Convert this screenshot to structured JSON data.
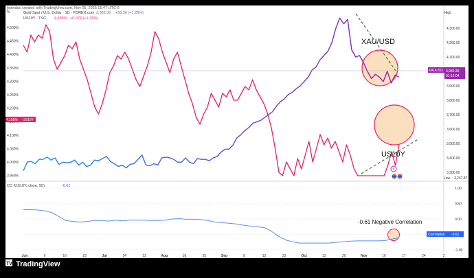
{
  "header": {
    "attribution": "jepindac created with TradingView.com, Nov 05, 2025 15:47 UTC-5",
    "legend_line1_name": "Gold Spot / U.S. Dollar · 1D · FOREX.com",
    "legend_line1_value": "3,982.30",
    "legend_line1_change": "+50.26 (+1.28%)",
    "legend_line2_name": "US10Y · TVC",
    "legend_line2_value": "4.155%",
    "legend_line2_change": "+0.072 (+1.76%)",
    "scale_mode": "High",
    "percent_corner": "%"
  },
  "badges": {
    "xau_price": "3,982.30",
    "xau_symbol": "XAUUSD",
    "xau_countdown": "01:12:04",
    "us10y_value": "4.155%",
    "us10y_symbol": "US10Y",
    "low_label": "Low",
    "low_value": "3,247.87",
    "corr_label": "Correlation",
    "corr_value": "-0.61"
  },
  "indicator": {
    "label": "CC (US10Y, close, 50)",
    "value": "-0.61"
  },
  "annotations": {
    "xau": "XAU/USD",
    "us10y": "US10Y",
    "corr": "-0.61 Negative Correlation"
  },
  "footer": {
    "brand": "TradingView"
  },
  "colors": {
    "xau_line_start": "#2196f3",
    "xau_line_end": "#9c27b0",
    "us10y_line": "#e91e63",
    "corr_line": "#5b8def",
    "highlight_fill": "#fbe0c0",
    "circle_stroke": "#e91e63",
    "trend_dash": "#2e7d32"
  },
  "chart_data": [
    {
      "type": "line",
      "xlabel": "",
      "x_ticks": [
        "Jun",
        "9",
        "16",
        "23",
        "Jul",
        "14",
        "22",
        "Aug",
        "18",
        "25",
        "Sep",
        "8",
        "15",
        "22",
        "Oct",
        "13",
        "20",
        "Nov",
        "10",
        "17",
        "24",
        "2"
      ],
      "y_left_ticks": [
        "4.500%",
        "4.450%",
        "4.400%",
        "4.350%",
        "4.300%",
        "4.250%",
        "4.200%",
        "4.150%",
        "4.100%",
        "4.050%",
        "4.000%",
        "3.950%"
      ],
      "y_right_ticks": [
        "4,300.00",
        "4,200.00",
        "4,100.00",
        "4,000.00",
        "3,900.00",
        "3,800.00",
        "3,700.00",
        "3,600.00",
        "3,500.00",
        "3,400.00",
        "3,300.00"
      ],
      "series": [
        {
          "name": "US10Y",
          "axis": "left",
          "values": [
            4.44,
            4.42,
            4.47,
            4.45,
            4.47,
            4.46,
            4.5,
            4.48,
            4.4,
            4.37,
            4.39,
            4.41,
            4.44,
            4.43,
            4.45,
            4.4,
            4.37,
            4.34,
            4.3,
            4.26,
            4.24,
            4.27,
            4.31,
            4.36,
            4.38,
            4.41,
            4.4,
            4.42,
            4.4,
            4.37,
            4.34,
            4.32,
            4.35,
            4.38,
            4.42,
            4.48,
            4.46,
            4.42,
            4.39,
            4.36,
            4.4,
            4.42,
            4.38,
            4.34,
            4.3,
            4.27,
            4.23,
            4.21,
            4.24,
            4.26,
            4.3,
            4.28,
            4.26,
            4.3,
            4.29,
            4.31,
            4.28,
            4.28,
            4.3,
            4.32,
            4.31,
            4.34,
            4.31,
            4.29,
            4.27,
            4.24,
            4.2,
            4.14,
            4.07,
            4.04,
            4.1,
            4.08,
            4.05,
            4.11,
            4.08,
            4.12,
            4.16,
            4.1,
            4.14,
            4.18,
            4.15,
            4.17,
            4.14,
            4.16,
            4.13,
            4.1,
            4.15,
            4.12,
            4.08,
            4.04,
            4.02,
            4.0,
            3.97,
            3.99,
            3.98,
            4.0,
            4.03,
            4.09,
            4.13,
            4.09,
            4.15
          ]
        },
        {
          "name": "XAUUSD",
          "axis": "right",
          "values": [
            3310,
            3372,
            3375,
            3360,
            3390,
            3390,
            3405,
            3385,
            3400,
            3355,
            3370,
            3365,
            3370,
            3385,
            3350,
            3370,
            3340,
            3350,
            3385,
            3380,
            3395,
            3410,
            3375,
            3360,
            3340,
            3350,
            3330,
            3355,
            3360,
            3390,
            3420,
            3350,
            3345,
            3360,
            3350,
            3400,
            3405,
            3400,
            3390,
            3370,
            3370,
            3400,
            3370,
            3360,
            3395,
            3390,
            3390,
            3380,
            3400,
            3410,
            3440,
            3460,
            3460,
            3490,
            3540,
            3560,
            3590,
            3610,
            3640,
            3650,
            3660,
            3680,
            3700,
            3720,
            3760,
            3790,
            3810,
            3840,
            3855,
            3880,
            3900,
            3930,
            3960,
            4010,
            4030,
            4080,
            4110,
            4140,
            4200,
            4300,
            4370,
            4330,
            4360,
            4150,
            4100,
            4110,
            4060,
            4000,
            3950,
            3980,
            3960,
            3930,
            4000,
            3920,
            3975,
            3960
          ]
        },
        {
          "name": "CC (US10Y, close, 50)",
          "values": [
            0.3,
            0.3,
            0.29,
            0.26,
            0.21,
            0.08,
            -0.05,
            -0.08,
            -0.1,
            -0.08,
            -0.05,
            -0.05,
            -0.07,
            -0.04,
            -0.06,
            -0.04,
            -0.04,
            -0.04,
            -0.05,
            -0.05,
            -0.04,
            0.0,
            0.01,
            -0.01,
            -0.01,
            -0.02,
            -0.05,
            -0.1,
            -0.12,
            -0.14,
            -0.16,
            -0.2,
            -0.23,
            -0.25,
            -0.28,
            -0.4,
            -0.56,
            -0.68,
            -0.74,
            -0.78,
            -0.78,
            -0.78,
            -0.78,
            -0.78,
            -0.76,
            -0.74,
            -0.72,
            -0.71,
            -0.71,
            -0.71,
            -0.71,
            -0.7,
            -0.65,
            -0.61
          ],
          "y_ticks": [
            "1.00",
            "0.50",
            "0.00",
            "-0.50",
            "-1.00"
          ]
        }
      ]
    }
  ]
}
